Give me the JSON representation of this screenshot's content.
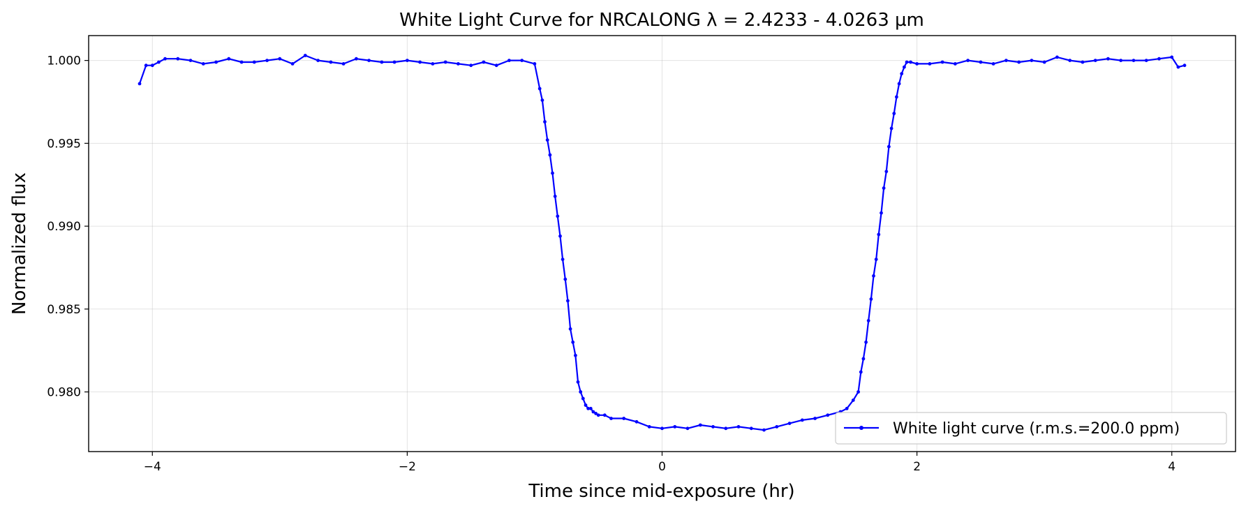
{
  "chart_data": {
    "type": "line",
    "title": "White Light Curve for NRCALONG λ = 2.4233 - 4.0263 µm",
    "xlabel": "Time since mid-exposure (hr)",
    "ylabel": "Normalized flux",
    "xlim": [
      -4.5,
      4.5
    ],
    "ylim": [
      0.9764,
      1.0015
    ],
    "xticks": [
      -4,
      -2,
      0,
      2,
      4
    ],
    "xtick_labels": [
      "−4",
      "−2",
      "0",
      "2",
      "4"
    ],
    "yticks": [
      0.98,
      0.985,
      0.99,
      0.995,
      1.0
    ],
    "ytick_labels": [
      "0.980",
      "0.985",
      "0.990",
      "0.995",
      "1.000"
    ],
    "grid": true,
    "legend_position": "lower-right",
    "series": [
      {
        "name": "White light curve (r.m.s.=200.0 ppm)",
        "color": "#0000ff",
        "marker": "dot",
        "x": [
          -4.1,
          -4.05,
          -4.0,
          -3.95,
          -3.9,
          -3.8,
          -3.7,
          -3.6,
          -3.5,
          -3.4,
          -3.3,
          -3.2,
          -3.1,
          -3.0,
          -2.9,
          -2.8,
          -2.7,
          -2.6,
          -2.5,
          -2.4,
          -2.3,
          -2.2,
          -2.1,
          -2.0,
          -1.9,
          -1.8,
          -1.7,
          -1.6,
          -1.5,
          -1.4,
          -1.3,
          -1.2,
          -1.1,
          -1.0,
          -0.96,
          -0.94,
          -0.92,
          -0.9,
          -0.88,
          -0.86,
          -0.84,
          -0.82,
          -0.8,
          -0.78,
          -0.76,
          -0.74,
          -0.72,
          -0.7,
          -0.68,
          -0.66,
          -0.64,
          -0.62,
          -0.6,
          -0.58,
          -0.56,
          -0.54,
          -0.52,
          -0.5,
          -0.45,
          -0.4,
          -0.3,
          -0.2,
          -0.1,
          0.0,
          0.1,
          0.2,
          0.3,
          0.4,
          0.5,
          0.6,
          0.7,
          0.8,
          0.9,
          1.0,
          1.1,
          1.2,
          1.3,
          1.4,
          1.45,
          1.5,
          1.54,
          1.56,
          1.58,
          1.6,
          1.62,
          1.64,
          1.66,
          1.68,
          1.7,
          1.72,
          1.74,
          1.76,
          1.78,
          1.8,
          1.82,
          1.84,
          1.86,
          1.88,
          1.9,
          1.92,
          1.95,
          2.0,
          2.1,
          2.2,
          2.3,
          2.4,
          2.5,
          2.6,
          2.7,
          2.8,
          2.9,
          3.0,
          3.1,
          3.2,
          3.3,
          3.4,
          3.5,
          3.6,
          3.7,
          3.8,
          3.9,
          4.0,
          4.05,
          4.1
        ],
        "y": [
          0.9986,
          0.9997,
          0.9997,
          0.9999,
          1.0001,
          1.0001,
          1.0,
          0.9998,
          0.9999,
          1.0001,
          0.9999,
          0.9999,
          1.0,
          1.0001,
          0.9998,
          1.0003,
          1.0,
          0.9999,
          0.9998,
          1.0001,
          1.0,
          0.9999,
          0.9999,
          1.0,
          0.9999,
          0.9998,
          0.9999,
          0.9998,
          0.9997,
          0.9999,
          0.9997,
          1.0,
          1.0,
          0.9998,
          0.9983,
          0.9976,
          0.9963,
          0.9952,
          0.9943,
          0.9932,
          0.9918,
          0.9906,
          0.9894,
          0.988,
          0.9868,
          0.9855,
          0.9838,
          0.983,
          0.9822,
          0.9806,
          0.98,
          0.9796,
          0.9792,
          0.979,
          0.979,
          0.9788,
          0.9787,
          0.9786,
          0.9786,
          0.9784,
          0.9784,
          0.9782,
          0.9779,
          0.9778,
          0.9779,
          0.9778,
          0.978,
          0.9779,
          0.9778,
          0.9779,
          0.9778,
          0.9777,
          0.9779,
          0.9781,
          0.9783,
          0.9784,
          0.9786,
          0.9788,
          0.979,
          0.9795,
          0.98,
          0.9812,
          0.982,
          0.983,
          0.9843,
          0.9856,
          0.987,
          0.988,
          0.9895,
          0.9908,
          0.9923,
          0.9933,
          0.9948,
          0.9959,
          0.9968,
          0.9978,
          0.9986,
          0.9992,
          0.9996,
          0.9999,
          0.9999,
          0.9998,
          0.9998,
          0.9999,
          0.9998,
          1.0,
          0.9999,
          0.9998,
          1.0,
          0.9999,
          1.0,
          0.9999,
          1.0002,
          1.0,
          0.9999,
          1.0,
          1.0001,
          1.0,
          1.0,
          1.0,
          1.0001,
          1.0002,
          0.9996,
          0.9997
        ]
      }
    ]
  }
}
